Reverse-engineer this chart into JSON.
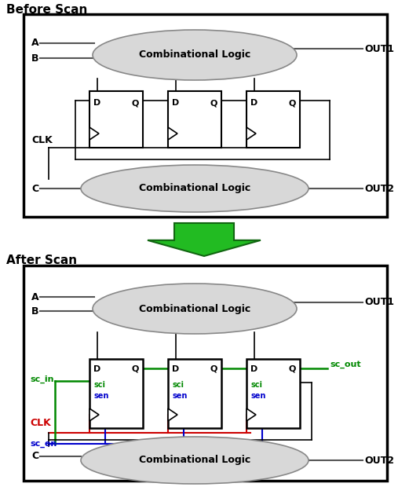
{
  "bg_color": "#ffffff",
  "title_before": "Before Scan",
  "title_after": "After Scan",
  "combo_logic_text": "Combinational Logic",
  "out1": "OUT1",
  "out2": "OUT2",
  "clk_label": "CLK",
  "clk_color": "#cc0000",
  "sc_in_label": "sc_in",
  "sc_in_color": "#008800",
  "sc_out_label": "sc_out",
  "sc_out_color": "#008800",
  "sc_en_label": "sc_en",
  "sc_en_color": "#0000cc",
  "sci_color": "#008800",
  "sen_color": "#0000cc",
  "wire_color": "#000000",
  "arrow_fill": "#22bb22",
  "arrow_edge": "#116611",
  "ellipse_fill": "#d8d8d8",
  "ellipse_edge": "#888888"
}
